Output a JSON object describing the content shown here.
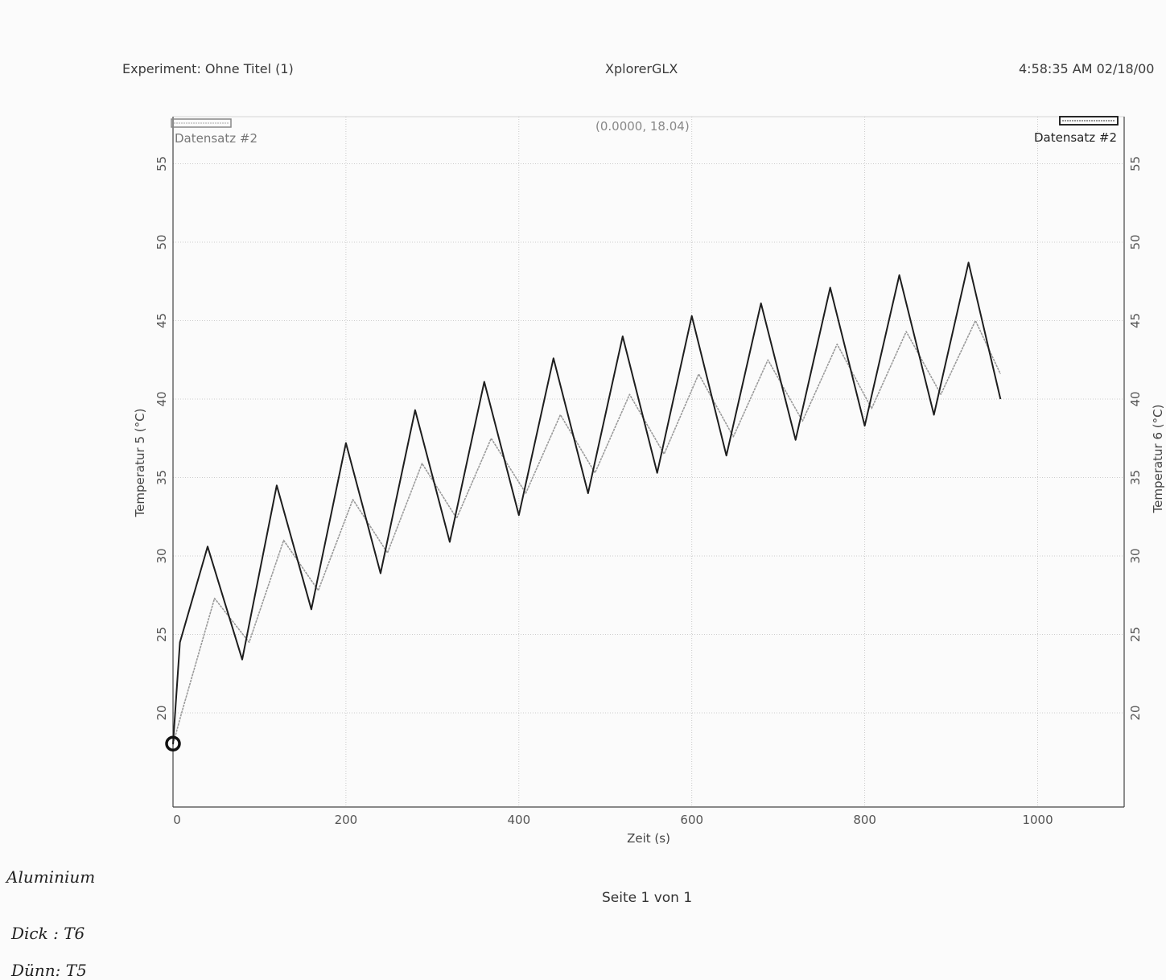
{
  "header": {
    "experiment": "Experiment: Ohne Titel (1)",
    "app": "XplorerGLX",
    "timestamp": "4:58:35 AM  02/18/00"
  },
  "footer": {
    "page": "Seite 1 von 1"
  },
  "notes": [
    "Aluminium",
    "Dick : T6",
    "Dünn: T5"
  ],
  "chart_data": {
    "type": "line",
    "xlabel": "Zeit (s)",
    "ylabel_left": "Temperatur 5 (°C)",
    "ylabel_right": "Temperatur 6 (°C)",
    "xlim": [
      0,
      1100
    ],
    "ylim": [
      14,
      58
    ],
    "x_ticks": [
      0,
      200,
      400,
      600,
      800,
      1000
    ],
    "y_ticks": [
      20,
      25,
      30,
      35,
      40,
      45,
      50,
      55
    ],
    "grid": true,
    "cursor_readout": "(0.0000, 18.04)",
    "cursor_point": [
      0,
      18.04
    ],
    "legend": [
      {
        "label": "Datensatz #2",
        "position": "top-left",
        "series": "Temperatur 5"
      },
      {
        "label": "Datensatz #2",
        "position": "top-right",
        "series": "Temperatur 6"
      }
    ],
    "series": [
      {
        "name": "Temperatur 5",
        "axis": "left",
        "color": "#1e1e1e",
        "x": [
          0,
          8,
          40,
          80,
          120,
          160,
          200,
          240,
          280,
          320,
          360,
          400,
          440,
          480,
          520,
          560,
          600,
          640,
          680,
          720,
          760,
          800,
          840,
          880,
          920,
          957
        ],
        "y": [
          18.0,
          24.5,
          30.6,
          23.4,
          34.5,
          26.6,
          37.2,
          28.9,
          39.3,
          30.9,
          41.1,
          32.6,
          42.6,
          34.0,
          44.0,
          35.3,
          45.3,
          36.4,
          46.1,
          37.4,
          47.1,
          38.3,
          47.9,
          39.0,
          48.7,
          40.0
        ]
      },
      {
        "name": "Temperatur 6",
        "axis": "right",
        "color": "#9a9a9a",
        "x": [
          0,
          10,
          48,
          88,
          128,
          168,
          208,
          248,
          288,
          328,
          368,
          408,
          448,
          488,
          528,
          568,
          608,
          648,
          688,
          728,
          768,
          808,
          848,
          888,
          928,
          957
        ],
        "y": [
          18.0,
          20.0,
          27.3,
          24.5,
          31.0,
          27.8,
          33.6,
          30.2,
          35.9,
          32.4,
          37.5,
          34.0,
          39.0,
          35.3,
          40.3,
          36.5,
          41.6,
          37.6,
          42.5,
          38.6,
          43.5,
          39.4,
          44.3,
          40.3,
          45.0,
          41.6
        ]
      }
    ]
  }
}
